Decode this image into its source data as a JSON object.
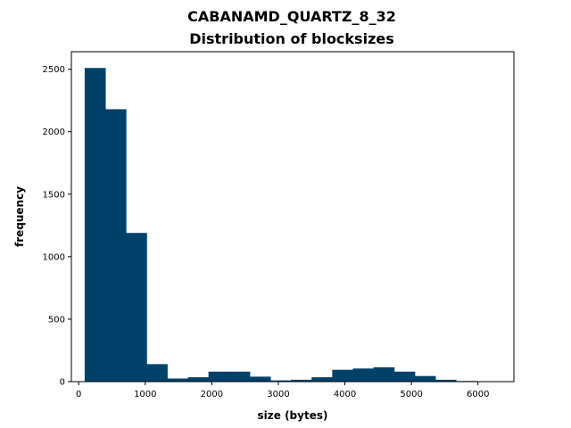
{
  "chart_data": {
    "type": "bar",
    "title": "CABANAMD_QUARTZ_8_32",
    "subtitle": "Distribution of blocksizes",
    "xlabel": "size (bytes)",
    "ylabel": "frequency",
    "xlim": [
      -110,
      6540
    ],
    "ylim": [
      0,
      2640
    ],
    "xticks": [
      0,
      1000,
      2000,
      3000,
      4000,
      5000,
      6000
    ],
    "yticks": [
      0,
      500,
      1000,
      1500,
      2000,
      2500
    ],
    "grid": false,
    "bar_color": "#00416A",
    "bin_start": 90,
    "bin_width": 310,
    "values": [
      2510,
      2180,
      1190,
      140,
      25,
      35,
      80,
      80,
      40,
      10,
      15,
      35,
      95,
      105,
      115,
      80,
      45,
      15,
      5,
      3
    ]
  }
}
